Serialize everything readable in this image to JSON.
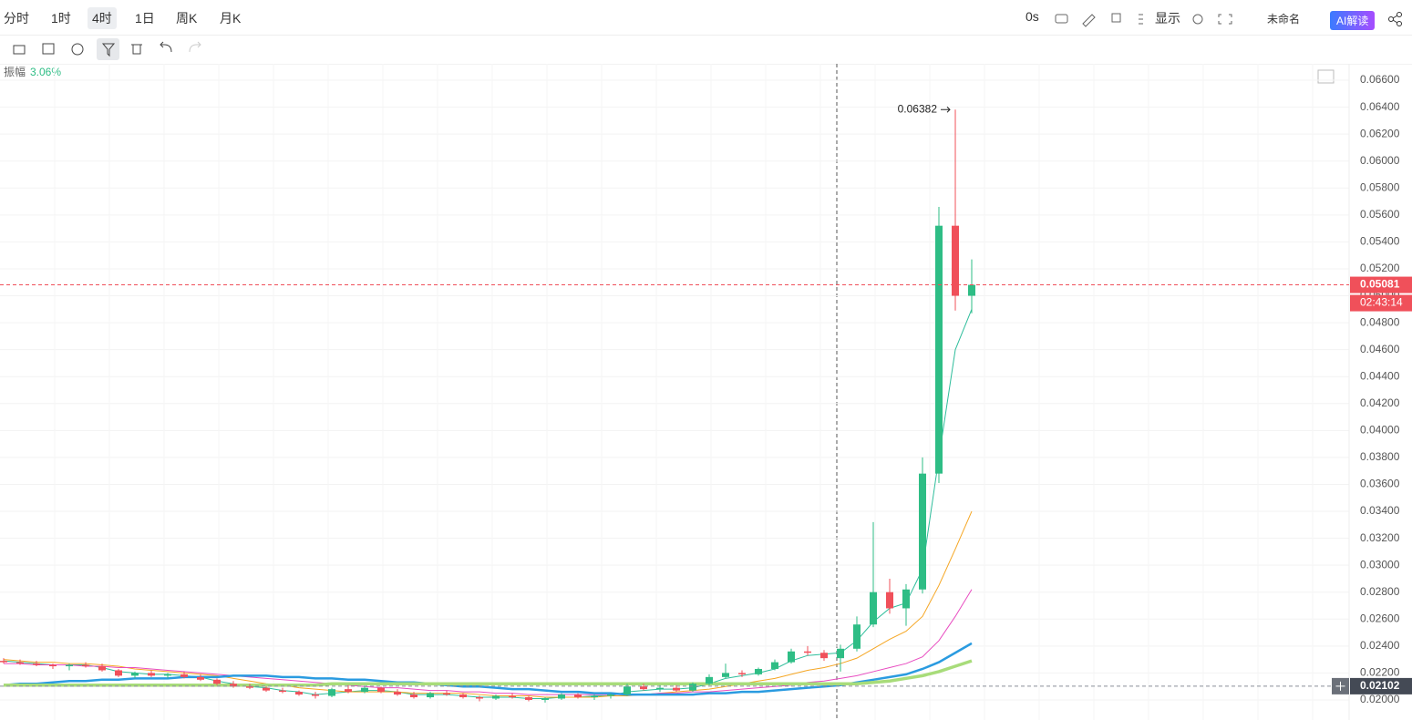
{
  "toolbar": {
    "periods": [
      "分时",
      "1时",
      "4时",
      "1日",
      "周K",
      "月K"
    ],
    "timer": "0s",
    "display": "显示",
    "layout_name": "未命名",
    "ai": "AI解读"
  },
  "chart_data": {
    "type": "candlestick",
    "amplitude": {
      "label": "振幅",
      "value": "3.06%"
    },
    "up_color": "#2ebd85",
    "down_color": "#f0505a",
    "series": {
      "open": [
        0.0229,
        0.0228,
        0.0227,
        0.0226,
        0.0225,
        0.0226,
        0.0225,
        0.0222,
        0.0218,
        0.022,
        0.0218,
        0.0219,
        0.0217,
        0.0215,
        0.0212,
        0.021,
        0.0209,
        0.0207,
        0.0206,
        0.0204,
        0.0203,
        0.0208,
        0.0206,
        0.0209,
        0.0206,
        0.0204,
        0.0202,
        0.0205,
        0.0204,
        0.0202,
        0.0201,
        0.0203,
        0.0202,
        0.02,
        0.0201,
        0.0204,
        0.0202,
        0.0203,
        0.0204,
        0.021,
        0.0208,
        0.0209,
        0.0207,
        0.0212,
        0.0217,
        0.022,
        0.0219,
        0.0223,
        0.0228,
        0.0236,
        0.0235,
        0.0231,
        0.0238,
        0.0256,
        0.028,
        0.0268,
        0.0282,
        0.0368,
        0.0552,
        0.05
      ],
      "high": [
        0.0231,
        0.023,
        0.0229,
        0.0227,
        0.0227,
        0.0228,
        0.0227,
        0.0223,
        0.0221,
        0.0222,
        0.022,
        0.0221,
        0.0219,
        0.0216,
        0.0214,
        0.0212,
        0.021,
        0.0209,
        0.0207,
        0.0206,
        0.0209,
        0.0211,
        0.021,
        0.021,
        0.0208,
        0.0206,
        0.0206,
        0.0207,
        0.0205,
        0.0203,
        0.0204,
        0.0205,
        0.0203,
        0.0202,
        0.0205,
        0.0205,
        0.0204,
        0.0205,
        0.0212,
        0.0212,
        0.0211,
        0.0211,
        0.0213,
        0.0219,
        0.0227,
        0.0222,
        0.0224,
        0.023,
        0.0238,
        0.024,
        0.0237,
        0.0241,
        0.0262,
        0.0332,
        0.029,
        0.0286,
        0.038,
        0.0566,
        0.06382,
        0.0527
      ],
      "low": [
        0.0227,
        0.0226,
        0.0225,
        0.0223,
        0.0222,
        0.0224,
        0.0221,
        0.0217,
        0.0216,
        0.0217,
        0.0216,
        0.0216,
        0.0214,
        0.0211,
        0.0209,
        0.0208,
        0.0206,
        0.0205,
        0.0203,
        0.0201,
        0.0202,
        0.0205,
        0.0205,
        0.0205,
        0.0203,
        0.0201,
        0.0201,
        0.0203,
        0.0201,
        0.0199,
        0.02,
        0.0201,
        0.0199,
        0.0198,
        0.02,
        0.0201,
        0.02,
        0.0201,
        0.0203,
        0.0207,
        0.0206,
        0.0206,
        0.0206,
        0.0211,
        0.0216,
        0.0217,
        0.0218,
        0.0222,
        0.0227,
        0.0233,
        0.0229,
        0.0221,
        0.0236,
        0.0254,
        0.0264,
        0.0255,
        0.0279,
        0.0361,
        0.0489,
        0.0487
      ],
      "close": [
        0.0228,
        0.0227,
        0.0226,
        0.0225,
        0.0226,
        0.0225,
        0.0222,
        0.0218,
        0.022,
        0.0218,
        0.0219,
        0.0217,
        0.0215,
        0.0212,
        0.021,
        0.0209,
        0.0207,
        0.0206,
        0.0204,
        0.0203,
        0.0208,
        0.0206,
        0.0209,
        0.0206,
        0.0204,
        0.0202,
        0.0205,
        0.0204,
        0.0202,
        0.0201,
        0.0203,
        0.0202,
        0.02,
        0.0201,
        0.0204,
        0.0202,
        0.0203,
        0.0204,
        0.021,
        0.0208,
        0.0209,
        0.0207,
        0.0212,
        0.0217,
        0.022,
        0.0219,
        0.0223,
        0.0228,
        0.0236,
        0.0235,
        0.0231,
        0.0238,
        0.0256,
        0.028,
        0.0268,
        0.0282,
        0.0368,
        0.0552,
        0.05,
        0.05081
      ]
    },
    "lines": [
      {
        "color": "#2ebd9b",
        "width": 1,
        "values": [
          0.0229,
          0.0228,
          0.0227,
          0.0226,
          0.0226,
          0.0226,
          0.0224,
          0.0221,
          0.022,
          0.0219,
          0.0219,
          0.0218,
          0.0217,
          0.0214,
          0.0212,
          0.021,
          0.0209,
          0.0207,
          0.0206,
          0.0204,
          0.0205,
          0.0206,
          0.0207,
          0.0207,
          0.0206,
          0.0204,
          0.0204,
          0.0204,
          0.0203,
          0.0202,
          0.0202,
          0.0202,
          0.0201,
          0.0201,
          0.0202,
          0.0202,
          0.0203,
          0.0203,
          0.0206,
          0.0207,
          0.0208,
          0.0208,
          0.0209,
          0.0212,
          0.0216,
          0.0218,
          0.022,
          0.0223,
          0.0229,
          0.0233,
          0.0234,
          0.0235,
          0.0244,
          0.0258,
          0.0268,
          0.0272,
          0.0297,
          0.038,
          0.046,
          0.049
        ]
      },
      {
        "color": "#f5a623",
        "width": 1,
        "values": [
          0.023,
          0.0229,
          0.0228,
          0.0228,
          0.0227,
          0.0227,
          0.0226,
          0.0225,
          0.0223,
          0.0222,
          0.0221,
          0.022,
          0.0219,
          0.0218,
          0.0216,
          0.0214,
          0.0212,
          0.0211,
          0.0209,
          0.0208,
          0.0207,
          0.0206,
          0.0206,
          0.0206,
          0.0206,
          0.0205,
          0.0205,
          0.0205,
          0.0205,
          0.0204,
          0.0203,
          0.0203,
          0.0203,
          0.0202,
          0.0202,
          0.0202,
          0.0202,
          0.0203,
          0.0203,
          0.0204,
          0.0205,
          0.0206,
          0.0207,
          0.0208,
          0.021,
          0.0212,
          0.0214,
          0.0216,
          0.0219,
          0.0222,
          0.0224,
          0.0227,
          0.0231,
          0.0238,
          0.0245,
          0.0251,
          0.0262,
          0.0285,
          0.0312,
          0.034
        ]
      },
      {
        "color": "#e84cc0",
        "width": 1,
        "values": [
          0.0227,
          0.0227,
          0.0226,
          0.0226,
          0.0226,
          0.0225,
          0.0225,
          0.0224,
          0.0224,
          0.0223,
          0.0222,
          0.0221,
          0.022,
          0.0219,
          0.0218,
          0.0217,
          0.0216,
          0.0215,
          0.0214,
          0.0213,
          0.0212,
          0.0211,
          0.021,
          0.0209,
          0.0209,
          0.0208,
          0.0207,
          0.0207,
          0.0206,
          0.0206,
          0.0205,
          0.0205,
          0.0204,
          0.0204,
          0.0204,
          0.0204,
          0.0204,
          0.0204,
          0.0204,
          0.0204,
          0.0205,
          0.0205,
          0.0206,
          0.0206,
          0.0207,
          0.0208,
          0.0209,
          0.021,
          0.0211,
          0.0213,
          0.0214,
          0.0216,
          0.0218,
          0.0221,
          0.0224,
          0.0227,
          0.0232,
          0.0244,
          0.0262,
          0.0282
        ]
      },
      {
        "color": "#2a9be0",
        "width": 2.5,
        "values": [
          0.0211,
          0.0212,
          0.0212,
          0.0213,
          0.0214,
          0.0214,
          0.0215,
          0.0215,
          0.0216,
          0.0216,
          0.0216,
          0.0217,
          0.0217,
          0.0217,
          0.0218,
          0.0218,
          0.0218,
          0.0217,
          0.0217,
          0.0216,
          0.0216,
          0.0215,
          0.0215,
          0.0214,
          0.0213,
          0.0213,
          0.0212,
          0.0211,
          0.021,
          0.021,
          0.0209,
          0.0208,
          0.0208,
          0.0207,
          0.0206,
          0.0206,
          0.0205,
          0.0205,
          0.0204,
          0.0204,
          0.0204,
          0.0204,
          0.0204,
          0.0205,
          0.0205,
          0.0206,
          0.0206,
          0.0207,
          0.0208,
          0.0209,
          0.021,
          0.0211,
          0.0213,
          0.0215,
          0.0217,
          0.0219,
          0.0223,
          0.0228,
          0.0235,
          0.0242
        ]
      },
      {
        "color": "#a8dc7a",
        "width": 3.5,
        "values": [
          0.0211,
          0.0211,
          0.0211,
          0.0211,
          0.0211,
          0.0211,
          0.0211,
          0.0211,
          0.0211,
          0.0211,
          0.0211,
          0.0211,
          0.0211,
          0.0211,
          0.0211,
          0.0211,
          0.0211,
          0.0211,
          0.0211,
          0.0211,
          0.0212,
          0.0212,
          0.0212,
          0.0212,
          0.0212,
          0.0212,
          0.0212,
          0.0212,
          0.0212,
          0.0212,
          0.0212,
          0.0212,
          0.0212,
          0.0212,
          0.0212,
          0.0212,
          0.0212,
          0.0212,
          0.0212,
          0.0212,
          0.0212,
          0.0212,
          0.0212,
          0.0212,
          0.0212,
          0.0212,
          0.0212,
          0.0212,
          0.0212,
          0.0212,
          0.0212,
          0.0212,
          0.0212,
          0.0213,
          0.0214,
          0.0216,
          0.0218,
          0.0221,
          0.0225,
          0.0229
        ]
      }
    ],
    "high_marker": 0.06382,
    "last_price": {
      "value": 0.05081,
      "color": "#f0505a",
      "countdown": "02:43:14"
    },
    "ref_price": {
      "value": 0.02102,
      "color": "#8a8f99"
    },
    "ylim": [
      0.01851,
      0.06722
    ],
    "yticks": [
      {
        "value": 0.02,
        "label": "0.02000"
      },
      {
        "value": 0.022,
        "label": "0.02200"
      },
      {
        "value": 0.024,
        "label": "0.02400"
      },
      {
        "value": 0.026,
        "label": "0.02600"
      },
      {
        "value": 0.028,
        "label": "0.02800"
      },
      {
        "value": 0.03,
        "label": "0.03000"
      },
      {
        "value": 0.032,
        "label": "0.03200"
      },
      {
        "value": 0.034,
        "label": "0.03400"
      },
      {
        "value": 0.036,
        "label": "0.03600"
      },
      {
        "value": 0.038,
        "label": "0.03800"
      },
      {
        "value": 0.04,
        "label": "0.04000"
      },
      {
        "value": 0.042,
        "label": "0.04200"
      },
      {
        "value": 0.044,
        "label": "0.04400"
      },
      {
        "value": 0.046,
        "label": "0.04600"
      },
      {
        "value": 0.048,
        "label": "0.04800"
      },
      {
        "value": 0.05,
        "label": "0.05000"
      },
      {
        "value": 0.052,
        "label": "0.05200"
      },
      {
        "value": 0.054,
        "label": "0.05400"
      },
      {
        "value": 0.056,
        "label": "0.05600"
      },
      {
        "value": 0.058,
        "label": "0.05800"
      },
      {
        "value": 0.06,
        "label": "0.06000"
      },
      {
        "value": 0.062,
        "label": "0.06200"
      },
      {
        "value": 0.064,
        "label": "0.06400"
      },
      {
        "value": 0.066,
        "label": "0.06600"
      }
    ],
    "grid": true
  }
}
